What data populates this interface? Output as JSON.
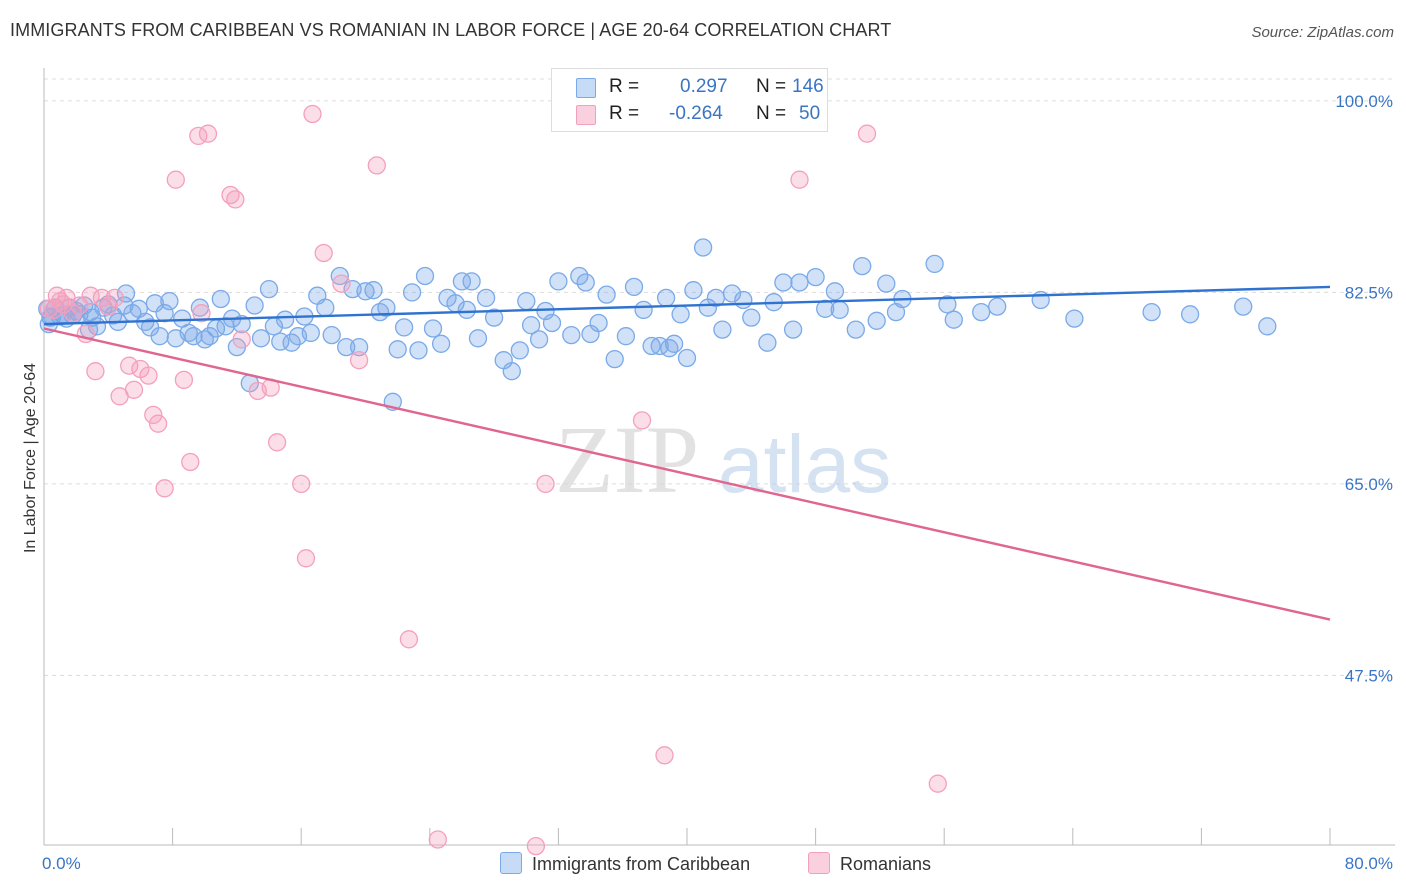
{
  "title": "IMMIGRANTS FROM CARIBBEAN VS ROMANIAN IN LABOR FORCE | AGE 20-64 CORRELATION CHART",
  "source": "Source: ZipAtlas.com",
  "watermark": {
    "zip": "ZIP",
    "atlas": "atlas"
  },
  "legend": {
    "rows": [
      {
        "r_label": "R =",
        "r_value": "0.297",
        "n_label": "N =",
        "n_value": "146",
        "color": "#7aaae8"
      },
      {
        "r_label": "R =",
        "r_value": "-0.264",
        "n_label": "N =",
        "n_value": "50",
        "color": "#f4a0bc"
      }
    ]
  },
  "bottom_legend": [
    {
      "label": "Immigrants from Caribbean",
      "color": "#7aaae8"
    },
    {
      "label": "Romanians",
      "color": "#f4a0bc"
    }
  ],
  "chart_data": {
    "type": "scatter",
    "ylabel": "In Labor Force | Age 20-64",
    "xlim": [
      0,
      80
    ],
    "ylim": [
      32,
      102
    ],
    "yticks": [
      47.5,
      65.0,
      82.5,
      100.0
    ],
    "ytick_labels": [
      "47.5%",
      "65.0%",
      "82.5%",
      "100.0%"
    ],
    "xtick_labels": [
      "0.0%",
      "80.0%"
    ],
    "grid": "horizontal dashed",
    "series": [
      {
        "name": "Immigrants from Caribbean",
        "color": "#7aaae8",
        "line_color": "#2f72cf",
        "trend": [
          [
            0,
            79.6
          ],
          [
            80,
            83.0
          ]
        ],
        "points": [
          [
            0.2,
            81.0
          ],
          [
            0.3,
            79.6
          ],
          [
            0.5,
            80.3
          ],
          [
            0.7,
            81.1
          ],
          [
            1.0,
            80.3
          ],
          [
            1.2,
            80.5
          ],
          [
            1.4,
            80.1
          ],
          [
            1.6,
            81.1
          ],
          [
            1.8,
            80.4
          ],
          [
            2.0,
            80.8
          ],
          [
            2.2,
            80.5
          ],
          [
            2.5,
            81.3
          ],
          [
            2.8,
            79.1
          ],
          [
            3.0,
            80.2
          ],
          [
            3.3,
            79.4
          ],
          [
            3.7,
            81.1
          ],
          [
            4.0,
            81.4
          ],
          [
            4.3,
            80.4
          ],
          [
            4.6,
            79.8
          ],
          [
            5.0,
            81.3
          ],
          [
            5.5,
            80.6
          ],
          [
            5.9,
            81.0
          ],
          [
            6.3,
            79.8
          ],
          [
            6.6,
            79.3
          ],
          [
            6.9,
            81.5
          ],
          [
            7.2,
            78.5
          ],
          [
            7.5,
            80.6
          ],
          [
            7.8,
            81.7
          ],
          [
            8.2,
            78.3
          ],
          [
            8.6,
            80.1
          ],
          [
            9.0,
            78.8
          ],
          [
            9.3,
            78.5
          ],
          [
            9.7,
            81.1
          ],
          [
            10.0,
            78.2
          ],
          [
            10.3,
            78.5
          ],
          [
            10.7,
            79.2
          ],
          [
            11.0,
            81.9
          ],
          [
            11.3,
            79.4
          ],
          [
            11.7,
            80.1
          ],
          [
            12.0,
            77.5
          ],
          [
            12.3,
            79.6
          ],
          [
            12.8,
            74.2
          ],
          [
            13.1,
            81.3
          ],
          [
            13.5,
            78.3
          ],
          [
            14.0,
            82.8
          ],
          [
            14.3,
            79.4
          ],
          [
            14.7,
            78.0
          ],
          [
            15.0,
            80.0
          ],
          [
            15.4,
            77.9
          ],
          [
            15.8,
            78.5
          ],
          [
            16.2,
            80.3
          ],
          [
            16.6,
            78.8
          ],
          [
            17.0,
            82.2
          ],
          [
            17.5,
            81.1
          ],
          [
            17.9,
            78.6
          ],
          [
            18.4,
            84.0
          ],
          [
            18.8,
            77.5
          ],
          [
            19.2,
            82.8
          ],
          [
            19.6,
            77.5
          ],
          [
            20.0,
            82.6
          ],
          [
            20.5,
            82.7
          ],
          [
            20.9,
            80.7
          ],
          [
            21.3,
            81.1
          ],
          [
            21.7,
            72.5
          ],
          [
            22.0,
            77.3
          ],
          [
            22.4,
            79.3
          ],
          [
            22.9,
            82.5
          ],
          [
            23.3,
            77.2
          ],
          [
            23.7,
            84.0
          ],
          [
            24.2,
            79.2
          ],
          [
            24.7,
            77.8
          ],
          [
            25.1,
            82.0
          ],
          [
            25.6,
            81.5
          ],
          [
            26.0,
            83.5
          ],
          [
            26.6,
            83.5
          ],
          [
            27.0,
            78.3
          ],
          [
            27.5,
            82.0
          ],
          [
            28.0,
            80.2
          ],
          [
            28.6,
            76.3
          ],
          [
            29.1,
            75.3
          ],
          [
            29.6,
            77.2
          ],
          [
            30.0,
            81.7
          ],
          [
            30.3,
            79.5
          ],
          [
            30.8,
            78.2
          ],
          [
            31.2,
            80.8
          ],
          [
            31.6,
            79.7
          ],
          [
            32.0,
            83.5
          ],
          [
            32.8,
            78.6
          ],
          [
            33.3,
            84.0
          ],
          [
            33.7,
            83.4
          ],
          [
            34.0,
            78.7
          ],
          [
            34.5,
            79.7
          ],
          [
            35.0,
            82.3
          ],
          [
            35.5,
            76.4
          ],
          [
            36.2,
            78.5
          ],
          [
            36.7,
            83.0
          ],
          [
            37.3,
            80.9
          ],
          [
            37.8,
            77.6
          ],
          [
            38.3,
            77.6
          ],
          [
            38.7,
            82.0
          ],
          [
            39.2,
            77.8
          ],
          [
            39.6,
            80.5
          ],
          [
            40.0,
            76.5
          ],
          [
            40.4,
            82.7
          ],
          [
            41.0,
            86.6
          ],
          [
            41.3,
            81.1
          ],
          [
            41.8,
            82.0
          ],
          [
            42.2,
            79.1
          ],
          [
            42.8,
            82.4
          ],
          [
            43.5,
            81.8
          ],
          [
            44.0,
            80.2
          ],
          [
            45.0,
            77.9
          ],
          [
            46.0,
            83.4
          ],
          [
            46.6,
            79.1
          ],
          [
            47.0,
            83.4
          ],
          [
            48.0,
            83.9
          ],
          [
            48.6,
            81.0
          ],
          [
            49.2,
            82.6
          ],
          [
            49.5,
            80.9
          ],
          [
            50.5,
            79.1
          ],
          [
            50.9,
            84.9
          ],
          [
            51.8,
            79.9
          ],
          [
            52.4,
            83.3
          ],
          [
            53.4,
            81.9
          ],
          [
            55.4,
            85.1
          ],
          [
            56.2,
            81.4
          ],
          [
            56.6,
            80.0
          ],
          [
            58.3,
            80.7
          ],
          [
            59.3,
            81.2
          ],
          [
            62.0,
            81.8
          ],
          [
            64.1,
            80.1
          ],
          [
            68.9,
            80.7
          ],
          [
            71.3,
            80.5
          ],
          [
            74.6,
            81.2
          ],
          [
            76.1,
            79.4
          ],
          [
            0.4,
            80.2
          ],
          [
            2.9,
            80.7
          ],
          [
            5.1,
            82.4
          ],
          [
            26.3,
            80.9
          ],
          [
            38.9,
            77.4
          ],
          [
            45.4,
            81.6
          ],
          [
            53.0,
            80.7
          ]
        ]
      },
      {
        "name": "Romanians",
        "color": "#f4a0bc",
        "line_color": "#e0668f",
        "trend": [
          [
            0,
            79.2
          ],
          [
            80,
            52.6
          ]
        ],
        "points": [
          [
            0.3,
            81.0
          ],
          [
            0.6,
            80.9
          ],
          [
            0.8,
            82.2
          ],
          [
            1.2,
            81.4
          ],
          [
            1.4,
            82.0
          ],
          [
            1.8,
            80.6
          ],
          [
            2.2,
            81.3
          ],
          [
            2.6,
            78.7
          ],
          [
            3.2,
            75.3
          ],
          [
            3.6,
            82.0
          ],
          [
            4.0,
            81.2
          ],
          [
            4.7,
            73.0
          ],
          [
            5.3,
            75.8
          ],
          [
            5.6,
            73.6
          ],
          [
            6.0,
            75.5
          ],
          [
            6.5,
            74.9
          ],
          [
            6.8,
            71.3
          ],
          [
            7.1,
            70.5
          ],
          [
            7.5,
            64.6
          ],
          [
            8.2,
            92.8
          ],
          [
            8.7,
            74.5
          ],
          [
            9.1,
            67.0
          ],
          [
            9.6,
            96.8
          ],
          [
            10.2,
            97.0
          ],
          [
            11.6,
            91.4
          ],
          [
            11.9,
            91.0
          ],
          [
            12.3,
            78.2
          ],
          [
            13.3,
            73.5
          ],
          [
            14.1,
            73.8
          ],
          [
            14.5,
            68.8
          ],
          [
            16.0,
            65.0
          ],
          [
            16.3,
            58.2
          ],
          [
            16.7,
            98.8
          ],
          [
            17.4,
            86.1
          ],
          [
            18.5,
            83.3
          ],
          [
            19.6,
            76.3
          ],
          [
            20.7,
            94.1
          ],
          [
            22.7,
            50.8
          ],
          [
            24.5,
            32.5
          ],
          [
            30.6,
            31.9
          ],
          [
            31.2,
            65.0
          ],
          [
            37.2,
            70.8
          ],
          [
            38.6,
            40.2
          ],
          [
            47.0,
            92.8
          ],
          [
            51.2,
            97.0
          ],
          [
            55.6,
            37.6
          ],
          [
            1.0,
            81.7
          ],
          [
            2.9,
            82.2
          ],
          [
            4.4,
            82.0
          ],
          [
            9.8,
            80.6
          ]
        ]
      }
    ]
  }
}
